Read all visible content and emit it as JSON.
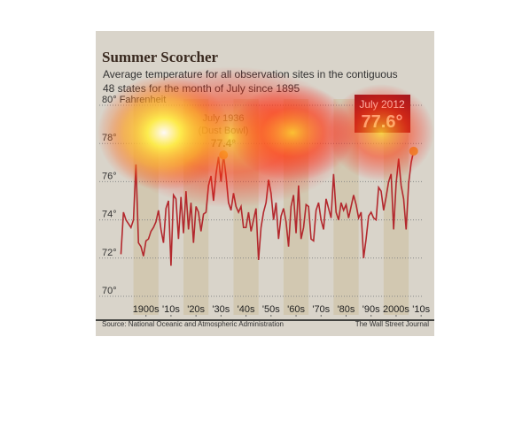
{
  "chart_data": {
    "type": "line",
    "title": "Summer Scorcher",
    "subtitle": [
      "Average temperature for all observation sites in the contiguous",
      "48 states for the month of July since 1895"
    ],
    "annotations": [
      {
        "lines": [
          "July 1936",
          "(Dust Bowl)"
        ],
        "value": "77.4°"
      },
      {
        "lines": [
          "July 2012"
        ],
        "value": "77.6°"
      }
    ],
    "source": "Source: National Oceanic and Atmospheric Administration",
    "credit": "The Wall Street Journal",
    "x": [
      1895,
      1896,
      1897,
      1898,
      1899,
      1900,
      1901,
      1902,
      1903,
      1904,
      1905,
      1906,
      1907,
      1908,
      1909,
      1910,
      1911,
      1912,
      1913,
      1914,
      1915,
      1916,
      1917,
      1918,
      1919,
      1920,
      1921,
      1922,
      1923,
      1924,
      1925,
      1926,
      1927,
      1928,
      1929,
      1930,
      1931,
      1932,
      1933,
      1934,
      1935,
      1936,
      1937,
      1938,
      1939,
      1940,
      1941,
      1942,
      1943,
      1944,
      1945,
      1946,
      1947,
      1948,
      1949,
      1950,
      1951,
      1952,
      1953,
      1954,
      1955,
      1956,
      1957,
      1958,
      1959,
      1960,
      1961,
      1962,
      1963,
      1964,
      1965,
      1966,
      1967,
      1968,
      1969,
      1970,
      1971,
      1972,
      1973,
      1974,
      1975,
      1976,
      1977,
      1978,
      1979,
      1980,
      1981,
      1982,
      1983,
      1984,
      1985,
      1986,
      1987,
      1988,
      1989,
      1990,
      1991,
      1992,
      1993,
      1994,
      1995,
      1996,
      1997,
      1998,
      1999,
      2000,
      2001,
      2002,
      2003,
      2004,
      2005,
      2006,
      2007,
      2008,
      2009,
      2010,
      2011,
      2012
    ],
    "series": [
      {
        "color": "#b3282d",
        "values": [
          72.2,
          74.4,
          74.0,
          73.8,
          73.6,
          74.0,
          76.9,
          72.8,
          72.6,
          72.1,
          72.9,
          73.0,
          73.4,
          73.6,
          73.9,
          74.5,
          73.5,
          72.8,
          74.6,
          75.0,
          71.6,
          75.3,
          75.1,
          73.0,
          75.2,
          73.3,
          75.5,
          73.5,
          74.9,
          72.8,
          74.7,
          74.4,
          73.4,
          74.3,
          74.4,
          75.8,
          76.3,
          75.0,
          76.4,
          77.3,
          76.0,
          77.4,
          76.3,
          74.9,
          74.5,
          75.4,
          74.7,
          74.4,
          74.7,
          73.6,
          73.6,
          74.4,
          73.4,
          74.0,
          74.6,
          71.9,
          73.6,
          74.4,
          74.9,
          76.1,
          75.4,
          74.0,
          74.9,
          73.0,
          74.2,
          74.6,
          73.9,
          72.6,
          74.7,
          75.3,
          73.3,
          75.8,
          73.0,
          73.6,
          74.8,
          74.7,
          73.0,
          72.9,
          74.5,
          74.9,
          74.0,
          73.5,
          75.1,
          74.6,
          74.1,
          76.4,
          74.4,
          74.0,
          74.9,
          74.5,
          74.8,
          74.1,
          74.7,
          75.3,
          74.8,
          74.1,
          74.4,
          72.0,
          73.0,
          74.2,
          74.4,
          74.1,
          74.0,
          75.7,
          75.5,
          74.5,
          75.2,
          76.0,
          76.4,
          73.5,
          75.9,
          77.2,
          75.8,
          75.1,
          73.5,
          75.9,
          77.0,
          77.6
        ]
      }
    ],
    "xlim": [
      1892,
      2016
    ],
    "xticks": [
      {
        "value": 1905,
        "label": "1900s"
      },
      {
        "value": 1915,
        "label": "'10s"
      },
      {
        "value": 1925,
        "label": "'20s"
      },
      {
        "value": 1935,
        "label": "'30s"
      },
      {
        "value": 1945,
        "label": "'40s"
      },
      {
        "value": 1955,
        "label": "'50s"
      },
      {
        "value": 1965,
        "label": "'60s"
      },
      {
        "value": 1975,
        "label": "'70s"
      },
      {
        "value": 1985,
        "label": "'80s"
      },
      {
        "value": 1995,
        "label": "'90s"
      },
      {
        "value": 2005,
        "label": "2000s"
      },
      {
        "value": 2015,
        "label": "'10s"
      }
    ],
    "ylim": [
      69,
      80.5
    ],
    "yticks": [
      {
        "value": 70,
        "label": "70°"
      },
      {
        "value": 72,
        "label": "72°"
      },
      {
        "value": 74,
        "label": "74°"
      },
      {
        "value": 76,
        "label": "76°"
      },
      {
        "value": 78,
        "label": "78°"
      },
      {
        "value": 80,
        "label": "80° Fahrenheit"
      }
    ],
    "grid": true
  }
}
